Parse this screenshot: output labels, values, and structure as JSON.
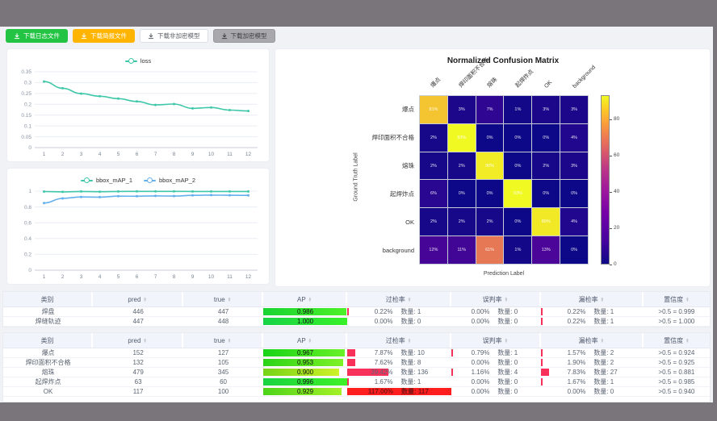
{
  "toolbar": {
    "buttons": [
      {
        "label": "下载日志文件",
        "style": "green"
      },
      {
        "label": "下载简报文件",
        "style": "orange"
      },
      {
        "label": "下载非加密模型",
        "style": "white"
      },
      {
        "label": "下载加密模型",
        "style": "gray"
      }
    ]
  },
  "colors": {
    "teal": "#3fc7a9",
    "blue": "#64b0ec",
    "red_bar": "#f8315b",
    "red_full": "#ff1e1e",
    "frame": "#7a747b"
  },
  "chart_data": [
    {
      "type": "line",
      "title": "loss",
      "x": [
        1,
        2,
        3,
        4,
        5,
        6,
        7,
        8,
        9,
        10,
        11,
        12
      ],
      "yticks": [
        0,
        0.05,
        0.1,
        0.15,
        0.2,
        0.25,
        0.3,
        0.35
      ],
      "ylim": [
        0,
        0.35
      ],
      "legend_position": "top",
      "grid": true,
      "series": [
        {
          "name": "loss",
          "color": "#3fc7a9",
          "values": [
            0.305,
            0.274,
            0.249,
            0.237,
            0.226,
            0.213,
            0.197,
            0.201,
            0.181,
            0.185,
            0.173,
            0.169
          ]
        }
      ]
    },
    {
      "type": "line",
      "title": "bbox_mAP",
      "x": [
        1,
        2,
        3,
        4,
        5,
        6,
        7,
        8,
        9,
        10,
        11,
        12
      ],
      "yticks": [
        0,
        0.2,
        0.4,
        0.6,
        0.8,
        1
      ],
      "ylim": [
        0,
        1
      ],
      "legend_position": "top",
      "grid": true,
      "series": [
        {
          "name": "bbox_mAP_1",
          "color": "#3fc7a9",
          "values": [
            0.995,
            0.991,
            0.996,
            0.993,
            0.996,
            0.997,
            0.997,
            0.997,
            0.996,
            0.996,
            0.996,
            0.996
          ]
        },
        {
          "name": "bbox_mAP_2",
          "color": "#64b0ec",
          "values": [
            0.85,
            0.908,
            0.927,
            0.924,
            0.937,
            0.936,
            0.94,
            0.938,
            0.947,
            0.95,
            0.948,
            0.947
          ]
        }
      ]
    },
    {
      "type": "heatmap",
      "title": "Normalized Confusion Matrix",
      "xlabel": "Prediction Label",
      "ylabel": "Ground Truth Label",
      "labels": [
        "爆点",
        "焊印面积不合格",
        "熔珠",
        "起焊炸点",
        "OK",
        "background"
      ],
      "values": [
        [
          81,
          3,
          7,
          1,
          3,
          3
        ],
        [
          2,
          93,
          0,
          0,
          0,
          4
        ],
        [
          2,
          2,
          90,
          0,
          2,
          3
        ],
        [
          6,
          0,
          0,
          93,
          0,
          0
        ],
        [
          2,
          2,
          2,
          0,
          89,
          4
        ],
        [
          12,
          11,
          61,
          1,
          13,
          0
        ]
      ],
      "unit": "%",
      "vmax": 93,
      "colorbar_ticks": [
        0,
        20,
        40,
        60,
        80
      ],
      "colormap": "plasma"
    }
  ],
  "tables": {
    "columns": [
      "类别",
      "pred",
      "true",
      "AP",
      "过检率",
      "误判率",
      "漏检率",
      "置信度"
    ],
    "count_prefix": "数量:",
    "groups": [
      {
        "rows": [
          {
            "cls": "焊盘",
            "pred": "446",
            "true": "447",
            "ap": "0.986",
            "apv": 0.986,
            "over": {
              "pct": "0.22%",
              "count": "数量: 1",
              "val": 0.22
            },
            "mis": {
              "pct": "0.00%",
              "count": "数量: 0",
              "val": 0
            },
            "miss": {
              "pct": "0.22%",
              "count": "数量: 1",
              "val": 0.22
            },
            "conf": ">0.5 = 0.999"
          },
          {
            "cls": "焊缝轨迹",
            "pred": "447",
            "true": "448",
            "ap": "1.000",
            "apv": 1.0,
            "over": {
              "pct": "0.00%",
              "count": "数量: 0",
              "val": 0
            },
            "mis": {
              "pct": "0.00%",
              "count": "数量: 0",
              "val": 0
            },
            "miss": {
              "pct": "0.22%",
              "count": "数量: 1",
              "val": 0.22
            },
            "conf": ">0.5 = 1.000"
          }
        ]
      },
      {
        "rows": [
          {
            "cls": "爆点",
            "pred": "152",
            "true": "127",
            "ap": "0.967",
            "apv": 0.967,
            "over": {
              "pct": "7.87%",
              "count": "数量: 10",
              "val": 7.87
            },
            "mis": {
              "pct": "0.79%",
              "count": "数量: 1",
              "val": 0.79
            },
            "miss": {
              "pct": "1.57%",
              "count": "数量: 2",
              "val": 1.57
            },
            "conf": ">0.5 = 0.924"
          },
          {
            "cls": "焊印面积不合格",
            "pred": "132",
            "true": "105",
            "ap": "0.953",
            "apv": 0.953,
            "over": {
              "pct": "7.62%",
              "count": "数量: 8",
              "val": 7.62
            },
            "mis": {
              "pct": "0.00%",
              "count": "数量: 0",
              "val": 0
            },
            "miss": {
              "pct": "1.90%",
              "count": "数量: 2",
              "val": 1.9
            },
            "conf": ">0.5 = 0.925"
          },
          {
            "cls": "熔珠",
            "pred": "479",
            "true": "345",
            "ap": "0.900",
            "apv": 0.9,
            "over": {
              "pct": "39.42%",
              "count": "数量: 136",
              "val": 39.42
            },
            "mis": {
              "pct": "1.16%",
              "count": "数量: 4",
              "val": 1.16
            },
            "miss": {
              "pct": "7.83%",
              "count": "数量: 27",
              "val": 7.83
            },
            "conf": ">0.5 = 0.881"
          },
          {
            "cls": "起焊炸点",
            "pred": "63",
            "true": "60",
            "ap": "0.996",
            "apv": 0.996,
            "over": {
              "pct": "1.67%",
              "count": "数量: 1",
              "val": 1.67
            },
            "mis": {
              "pct": "0.00%",
              "count": "数量: 0",
              "val": 0
            },
            "miss": {
              "pct": "1.67%",
              "count": "数量: 1",
              "val": 1.67
            },
            "conf": ">0.5 = 0.985"
          },
          {
            "cls": "OK",
            "pred": "117",
            "true": "100",
            "ap": "0.929",
            "apv": 0.929,
            "over": {
              "pct": "117.00%",
              "count": "数量: 117",
              "val": 117
            },
            "mis": {
              "pct": "0.00%",
              "count": "数量: 0",
              "val": 0
            },
            "miss": {
              "pct": "0.00%",
              "count": "数量: 0",
              "val": 0
            },
            "conf": ">0.5 = 0.940"
          }
        ]
      }
    ]
  }
}
